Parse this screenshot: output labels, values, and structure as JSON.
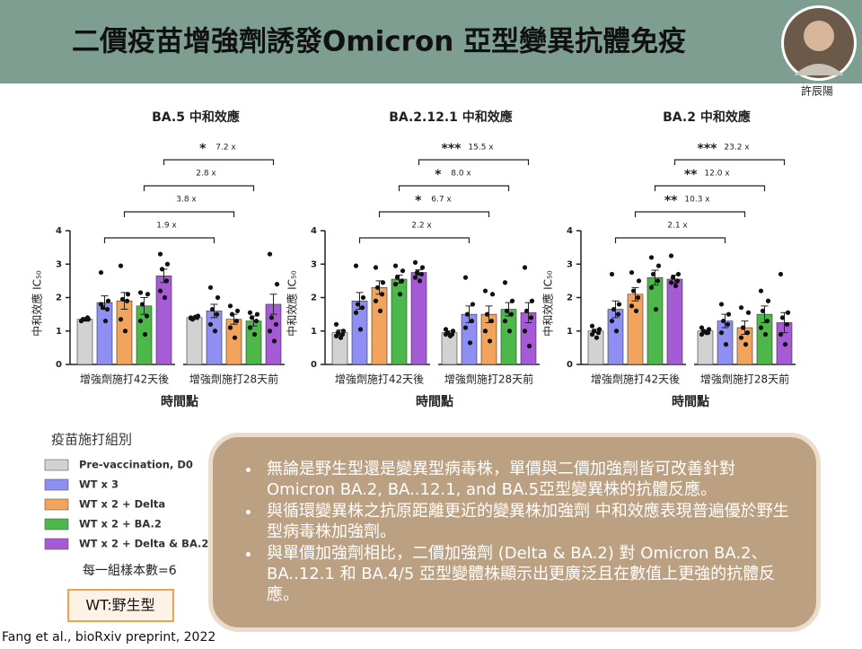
{
  "header": {
    "title": "二價疫苗增強劑誘發Omicron 亞型變異抗體免疫",
    "speaker": "許辰陽"
  },
  "legend": {
    "title": "疫苗施打組別",
    "series": [
      {
        "name": "Pre-vaccination, D0",
        "color": "#d2d2d2"
      },
      {
        "name": "WT x 3",
        "color": "#8d8ff2"
      },
      {
        "name": "WT x 2 + Delta",
        "color": "#f2a45c"
      },
      {
        "name": "WT x 2 + BA.2",
        "color": "#4cb84a"
      },
      {
        "name": "WT x 2 + Delta & BA.2",
        "color": "#a55ad6"
      }
    ]
  },
  "sample_note": "每一組樣本數=6",
  "wt_note": "WT:野生型",
  "citation": "Fang et al., bioRxiv preprint, 2022",
  "notes": [
    "無論是野生型還是變異型病毒株，單價與二價加強劑皆可改善針對Omicron BA.2, BA..12.1, and BA.5亞型變異株的抗體反應。",
    "與循環變異株之抗原距離更近的變異株加強劑 中和效應表現普遍優於野生型病毒株加強劑。",
    "與單價加強劑相比，二價加強劑 (Delta & BA.2) 對 Omicron BA.2、BA..12.1 和 BA.4/5 亞型變體株顯示出更廣泛且在數值上更強的抗體反應。"
  ],
  "chart_data": [
    {
      "type": "bar",
      "title": "BA.5 中和效應",
      "y_label": "中和效應 IC₅₀",
      "x_label": "時間點",
      "categories": [
        "增強劑施打42天後",
        "增強劑施打28天前"
      ],
      "ylim": [
        0,
        4
      ],
      "yticks": [
        0,
        1,
        2,
        3,
        4
      ],
      "series": [
        {
          "values": [
            1.35,
            1.4
          ],
          "errors": [
            0.05,
            0.03
          ],
          "points": [
            [
              1.3,
              1.35,
              1.35,
              1.4,
              1.3,
              1.35
            ],
            [
              1.4,
              1.45,
              1.35,
              1.4,
              1.38,
              1.42
            ]
          ]
        },
        {
          "values": [
            1.85,
            1.6
          ],
          "errors": [
            0.2,
            0.2
          ],
          "points": [
            [
              2.75,
              1.9,
              1.7,
              1.65,
              1.8,
              1.3
            ],
            [
              2.3,
              2.0,
              1.65,
              1.5,
              1.2,
              1.0
            ]
          ],
          "comparison": {
            "label": "1.9 x"
          }
        },
        {
          "values": [
            1.9,
            1.35
          ],
          "errors": [
            0.25,
            0.15
          ],
          "points": [
            [
              2.95,
              2.1,
              1.95,
              1.9,
              1.35,
              1.0
            ],
            [
              1.75,
              1.6,
              1.5,
              1.3,
              1.1,
              0.8
            ]
          ],
          "comparison": {
            "label": "3.8 x"
          }
        },
        {
          "values": [
            1.75,
            1.3
          ],
          "errors": [
            0.25,
            0.15
          ],
          "points": [
            [
              2.15,
              2.1,
              1.8,
              1.45,
              1.3,
              0.9
            ],
            [
              1.55,
              1.5,
              1.4,
              1.3,
              1.1,
              0.9
            ]
          ],
          "comparison": {
            "label": "2.8 x"
          }
        },
        {
          "values": [
            2.65,
            1.8
          ],
          "errors": [
            0.2,
            0.3
          ],
          "points": [
            [
              3.3,
              3.0,
              2.85,
              2.5,
              2.2,
              2.0
            ],
            [
              3.3,
              2.4,
              1.4,
              1.2,
              1.0,
              0.7
            ]
          ],
          "comparison": {
            "stars": "*",
            "label": "7.2 x"
          }
        }
      ]
    },
    {
      "type": "bar",
      "title": "BA.2.12.1 中和效應",
      "y_label": "中和效應 IC₅₀",
      "x_label": "時間點",
      "categories": [
        "增強劑施打42天後",
        "增強劑施打28天前"
      ],
      "ylim": [
        0,
        4
      ],
      "yticks": [
        0,
        1,
        2,
        3,
        4
      ],
      "series": [
        {
          "values": [
            0.95,
            0.95
          ],
          "errors": [
            0.08,
            0.05
          ],
          "points": [
            [
              1.2,
              1.0,
              0.95,
              0.9,
              0.85,
              0.8
            ],
            [
              1.05,
              1.0,
              0.95,
              0.9,
              0.9,
              0.85
            ]
          ]
        },
        {
          "values": [
            1.9,
            1.5
          ],
          "errors": [
            0.25,
            0.25
          ],
          "points": [
            [
              2.95,
              2.0,
              1.8,
              1.7,
              1.55,
              1.05
            ],
            [
              2.6,
              1.8,
              1.5,
              1.3,
              1.1,
              0.65
            ]
          ],
          "comparison": {
            "label": "2.2 x"
          }
        },
        {
          "values": [
            2.3,
            1.5
          ],
          "errors": [
            0.2,
            0.25
          ],
          "points": [
            [
              2.9,
              2.45,
              2.3,
              2.1,
              1.9,
              1.6
            ],
            [
              2.2,
              2.1,
              1.5,
              1.3,
              1.0,
              0.7
            ]
          ],
          "comparison": {
            "stars": "*",
            "label": "6.7 x"
          }
        },
        {
          "values": [
            2.55,
            1.65
          ],
          "errors": [
            0.12,
            0.2
          ],
          "points": [
            [
              2.95,
              2.8,
              2.6,
              2.5,
              2.4,
              2.1
            ],
            [
              2.45,
              1.9,
              1.6,
              1.5,
              1.3,
              1.0
            ]
          ],
          "comparison": {
            "stars": "*",
            "label": "8.0 x"
          }
        },
        {
          "values": [
            2.75,
            1.55
          ],
          "errors": [
            0.08,
            0.3
          ],
          "points": [
            [
              3.05,
              2.9,
              2.75,
              2.7,
              2.6,
              2.5
            ],
            [
              2.9,
              1.9,
              1.6,
              1.4,
              1.0,
              0.55
            ]
          ],
          "comparison": {
            "stars": "***",
            "label": "15.5 x"
          }
        }
      ]
    },
    {
      "type": "bar",
      "title": "BA.2 中和效應",
      "y_label": "中和效應 IC₅₀",
      "x_label": "時間點",
      "categories": [
        "增強劑施打42天後",
        "增強劑施打28天前"
      ],
      "ylim": [
        0,
        4
      ],
      "yticks": [
        0,
        1,
        2,
        3,
        4
      ],
      "series": [
        {
          "values": [
            1.0,
            1.0
          ],
          "errors": [
            0.05,
            0.03
          ],
          "points": [
            [
              1.15,
              1.05,
              1.0,
              0.95,
              0.9,
              0.8
            ],
            [
              1.1,
              1.05,
              1.0,
              0.95,
              0.9,
              0.95
            ]
          ]
        },
        {
          "values": [
            1.65,
            1.3
          ],
          "errors": [
            0.25,
            0.2
          ],
          "points": [
            [
              2.7,
              1.8,
              1.65,
              1.5,
              1.3,
              1.0
            ],
            [
              1.8,
              1.5,
              1.3,
              1.2,
              0.95,
              0.6
            ]
          ],
          "comparison": {
            "label": "2.1 x"
          }
        },
        {
          "values": [
            2.1,
            1.1
          ],
          "errors": [
            0.2,
            0.2
          ],
          "points": [
            [
              2.75,
              2.5,
              2.2,
              2.0,
              1.75,
              1.6
            ],
            [
              1.7,
              1.55,
              1.1,
              0.95,
              0.8,
              0.6
            ]
          ],
          "comparison": {
            "stars": "**",
            "label": "10.3 x"
          }
        },
        {
          "values": [
            2.6,
            1.5
          ],
          "errors": [
            0.22,
            0.25
          ],
          "points": [
            [
              3.2,
              2.95,
              2.7,
              2.5,
              2.3,
              1.65
            ],
            [
              2.2,
              1.9,
              1.6,
              1.3,
              1.1,
              0.9
            ]
          ],
          "comparison": {
            "stars": "**",
            "label": "12.0 x"
          }
        },
        {
          "values": [
            2.55,
            1.25
          ],
          "errors": [
            0.12,
            0.3
          ],
          "points": [
            [
              3.25,
              2.7,
              2.6,
              2.5,
              2.45,
              2.35
            ],
            [
              2.7,
              1.55,
              1.4,
              1.2,
              0.9,
              0.6
            ]
          ],
          "comparison": {
            "stars": "***",
            "label": "23.2 x"
          }
        }
      ]
    }
  ]
}
